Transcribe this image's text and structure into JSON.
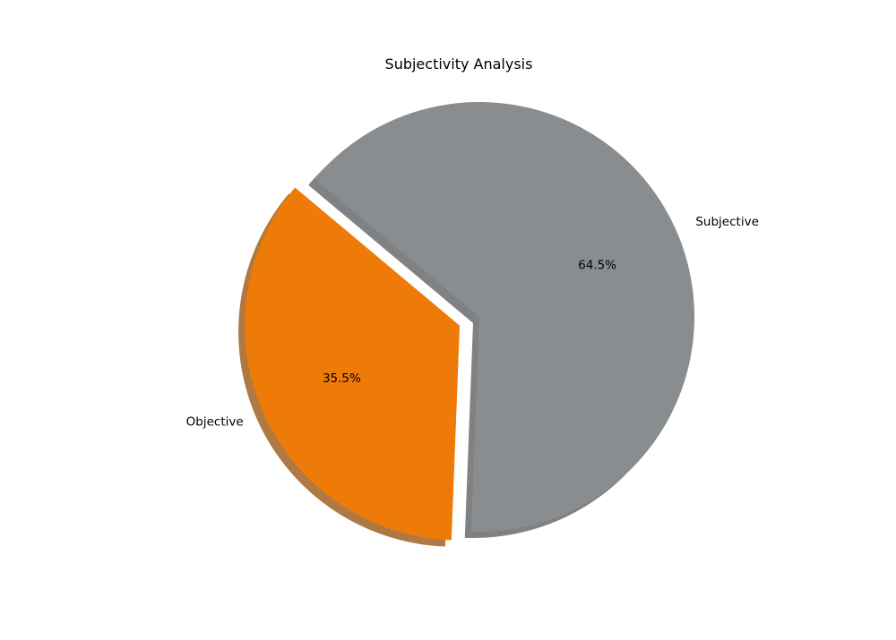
{
  "chart_data": {
    "type": "pie",
    "title": "Subjectivity Analysis",
    "categories": [
      "Objective",
      "Subjective"
    ],
    "values": [
      35.5,
      64.5
    ],
    "percent_labels": [
      "35.5%",
      "64.5%"
    ],
    "colors": [
      "#ee7b08",
      "#8a8d8f"
    ],
    "explode": [
      0.1,
      0
    ],
    "shadow": true,
    "start_angle_deg": 140,
    "legend": "none"
  }
}
